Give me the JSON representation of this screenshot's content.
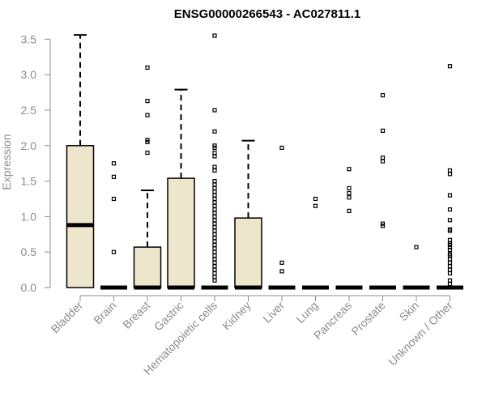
{
  "chart_data": {
    "type": "boxplot",
    "title": "ENSG00000266543 - AC027811.1",
    "xlabel": "",
    "ylabel": "Expression",
    "ylim": [
      0,
      3.6
    ],
    "yticks": [
      "0.0",
      "0.5",
      "1.0",
      "1.5",
      "2.0",
      "2.5",
      "3.0",
      "3.5"
    ],
    "box_fill": "#ede6cc",
    "box_stroke": "#000000",
    "axis_color": "#8c8c8c",
    "categories": [
      "Bladder",
      "Brain",
      "Breast",
      "Gastric",
      "Hematopoietic cells",
      "Kidney",
      "Liver",
      "Lung",
      "Pancreas",
      "Prostate",
      "Skin",
      "Unknown / Other"
    ],
    "boxes": [
      {
        "q1": 0,
        "median": 0.88,
        "q3": 2.0,
        "whisker_low": 0,
        "whisker_high": 3.56,
        "outliers": []
      },
      {
        "q1": 0,
        "median": 0,
        "q3": 0,
        "whisker_low": 0,
        "whisker_high": 0,
        "outliers": [
          1.75,
          1.56,
          1.25,
          0.5
        ]
      },
      {
        "q1": 0,
        "median": 0,
        "q3": 0.57,
        "whisker_low": 0,
        "whisker_high": 1.37,
        "outliers": [
          3.1,
          2.63,
          2.43,
          2.08,
          2.05,
          1.9
        ]
      },
      {
        "q1": 0,
        "median": 0,
        "q3": 1.54,
        "whisker_low": 0,
        "whisker_high": 2.79,
        "outliers": []
      },
      {
        "q1": 0,
        "median": 0,
        "q3": 0,
        "whisker_low": 0,
        "whisker_high": 0,
        "outliers": [
          3.55,
          2.5,
          2.2,
          2.0,
          1.97,
          1.9,
          1.85,
          1.7,
          1.65,
          1.5,
          1.45,
          1.4,
          1.35,
          1.3,
          1.25,
          1.2,
          1.15,
          1.1,
          1.05,
          1.0,
          0.95,
          0.9,
          0.85,
          0.8,
          0.75,
          0.7,
          0.65,
          0.6,
          0.55,
          0.5,
          0.45,
          0.4,
          0.35,
          0.3,
          0.25,
          0.2,
          0.15,
          0.1
        ]
      },
      {
        "q1": 0,
        "median": 0,
        "q3": 0.98,
        "whisker_low": 0,
        "whisker_high": 2.07,
        "outliers": []
      },
      {
        "q1": 0,
        "median": 0,
        "q3": 0,
        "whisker_low": 0,
        "whisker_high": 0,
        "outliers": [
          1.97,
          0.35,
          0.23
        ]
      },
      {
        "q1": 0,
        "median": 0,
        "q3": 0,
        "whisker_low": 0,
        "whisker_high": 0,
        "outliers": [
          1.25,
          1.15
        ]
      },
      {
        "q1": 0,
        "median": 0,
        "q3": 0,
        "whisker_low": 0,
        "whisker_high": 0,
        "outliers": [
          1.67,
          1.4,
          1.33,
          1.27,
          1.08
        ]
      },
      {
        "q1": 0,
        "median": 0,
        "q3": 0,
        "whisker_low": 0,
        "whisker_high": 0,
        "outliers": [
          2.71,
          2.21,
          1.83,
          1.78,
          0.9,
          0.87
        ]
      },
      {
        "q1": 0,
        "median": 0,
        "q3": 0,
        "whisker_low": 0,
        "whisker_high": 0,
        "outliers": [
          0.57
        ]
      },
      {
        "q1": 0,
        "median": 0,
        "q3": 0,
        "whisker_low": 0,
        "whisker_high": 0,
        "outliers": [
          3.12,
          1.65,
          1.6,
          1.3,
          1.1,
          0.95,
          0.82,
          0.8,
          0.67,
          0.62,
          0.6,
          0.57,
          0.53,
          0.47,
          0.45,
          0.4,
          0.35,
          0.3,
          0.25,
          0.2,
          0.1,
          0.05
        ]
      }
    ]
  }
}
